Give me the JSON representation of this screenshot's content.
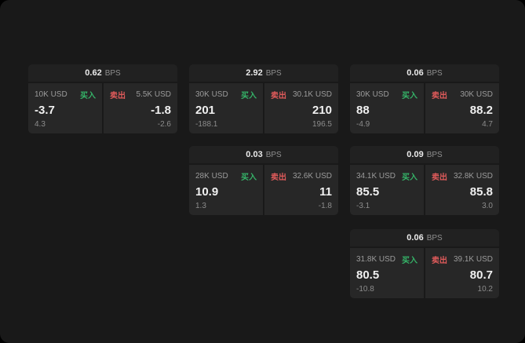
{
  "labels": {
    "bps_unit": "BPS"
  },
  "colors": {
    "buy_green": "#35b368",
    "sell_red": "#e05b5b"
  },
  "cards": [
    {
      "bps": "0.62",
      "buy": {
        "size": "10K USD",
        "label": "买入",
        "price": "-3.7",
        "sub": "4.3"
      },
      "sell": {
        "label": "卖出",
        "size": "5.5K USD",
        "price": "-1.8",
        "sub": "-2.6"
      }
    },
    {
      "bps": "2.92",
      "buy": {
        "size": "30K USD",
        "label": "买入",
        "price": "201",
        "sub": "-188.1"
      },
      "sell": {
        "label": "卖出",
        "size": "30.1K USD",
        "price": "210",
        "sub": "196.5"
      }
    },
    {
      "bps": "0.06",
      "buy": {
        "size": "30K USD",
        "label": "买入",
        "price": "88",
        "sub": "-4.9"
      },
      "sell": {
        "label": "卖出",
        "size": "30K USD",
        "price": "88.2",
        "sub": "4.7"
      }
    },
    {
      "bps": "0.03",
      "buy": {
        "size": "28K USD",
        "label": "买入",
        "price": "10.9",
        "sub": "1.3"
      },
      "sell": {
        "label": "卖出",
        "size": "32.6K USD",
        "price": "11",
        "sub": "-1.8"
      }
    },
    {
      "bps": "0.09",
      "buy": {
        "size": "34.1K USD",
        "label": "买入",
        "price": "85.5",
        "sub": "-3.1"
      },
      "sell": {
        "label": "卖出",
        "size": "32.8K USD",
        "price": "85.8",
        "sub": "3.0"
      }
    },
    {
      "bps": "0.06",
      "buy": {
        "size": "31.8K USD",
        "label": "买入",
        "price": "80.5",
        "sub": "-10.8"
      },
      "sell": {
        "label": "卖出",
        "size": "39.1K USD",
        "price": "80.7",
        "sub": "10.2"
      }
    }
  ]
}
